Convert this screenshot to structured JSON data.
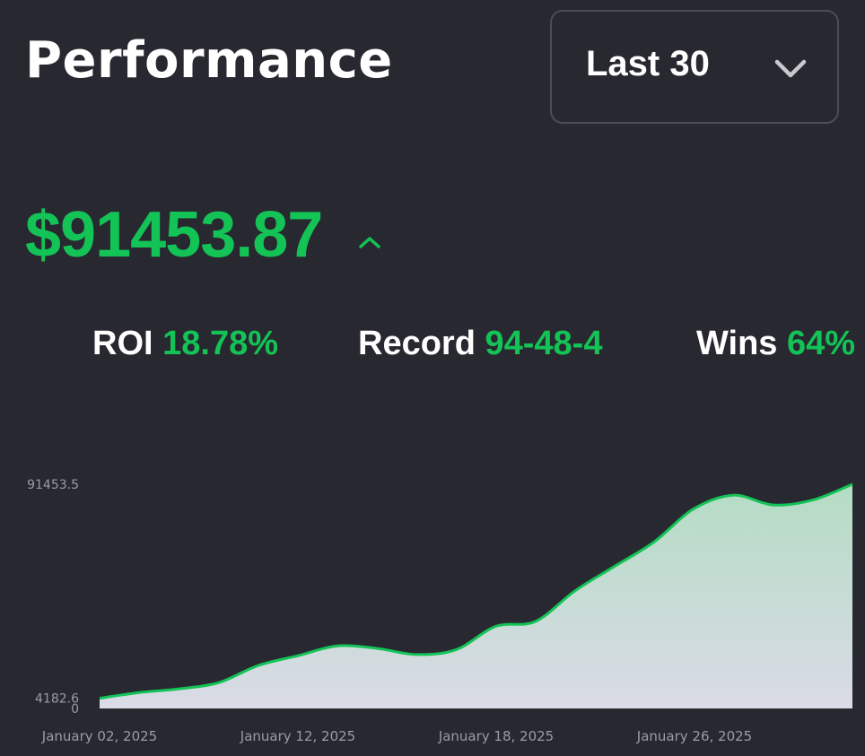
{
  "header": {
    "title": "Performance",
    "range_select": {
      "selected": "Last 30",
      "icon": "chevron-down-icon"
    }
  },
  "balance": {
    "value": "$91453.87",
    "trend_icon": "caret-up-icon"
  },
  "stats": [
    {
      "label": "ROI",
      "value": "18.78%"
    },
    {
      "label": "Record",
      "value": "94-48-4"
    },
    {
      "label": "Wins",
      "value": "64%"
    }
  ],
  "colors": {
    "background": "#272830",
    "accent": "#14c356",
    "text": "#ffffff",
    "axis_text": "#9a9ba6"
  },
  "chart_data": {
    "type": "area",
    "y_tick_labels": [
      "91453.5",
      "4182.6",
      "0"
    ],
    "x_tick_labels": [
      "January 02, 2025",
      "January 12, 2025",
      "January 18, 2025",
      "January 26, 2025"
    ],
    "ylim": [
      0,
      91453.5
    ],
    "grid": false,
    "legend": "none",
    "series": [
      {
        "values": [
          4182.6,
          6500,
          8000,
          10500,
          17500,
          21500,
          25500,
          24500,
          22000,
          24000,
          33500,
          35500,
          48000,
          58000,
          68000,
          81500,
          87000,
          83000,
          85000,
          91453.5
        ]
      }
    ]
  }
}
